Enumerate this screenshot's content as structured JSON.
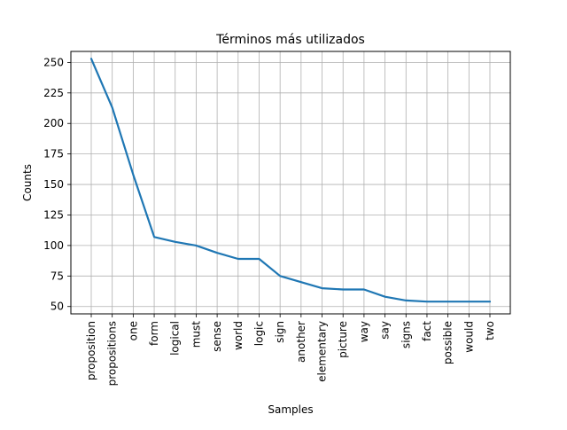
{
  "chart_data": {
    "type": "line",
    "title": "Términos más utilizados",
    "xlabel": "Samples",
    "ylabel": "Counts",
    "categories": [
      "proposition",
      "propositions",
      "one",
      "form",
      "logical",
      "must",
      "sense",
      "world",
      "logic",
      "sign",
      "another",
      "elementary",
      "picture",
      "way",
      "say",
      "signs",
      "fact",
      "possible",
      "would",
      "two"
    ],
    "values": [
      253,
      213,
      158,
      107,
      103,
      100,
      94,
      89,
      89,
      75,
      70,
      65,
      64,
      64,
      58,
      55,
      54,
      54,
      54,
      54
    ],
    "ylim": [
      44,
      259
    ],
    "yticks": [
      50,
      75,
      100,
      125,
      150,
      175,
      200,
      225,
      250
    ],
    "grid": true,
    "line_color": "#1f77b4",
    "grid_color": "#b0b0b0"
  }
}
